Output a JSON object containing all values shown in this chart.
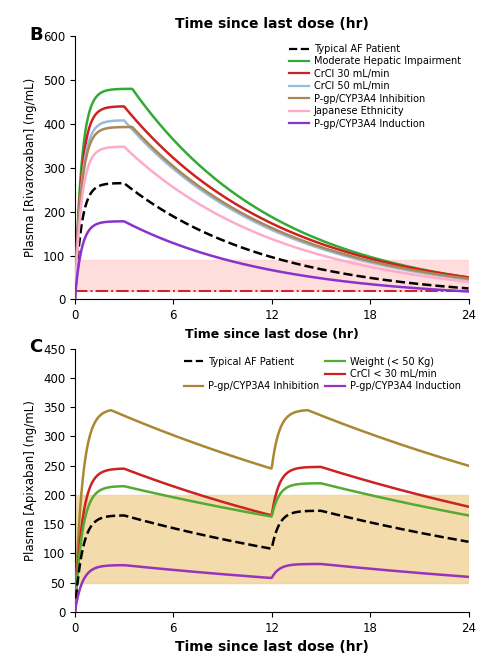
{
  "title_top": "Time since last dose (hr)",
  "panel_B": {
    "label": "B",
    "ylabel": "Plasma [Rivaroxaban] (ng/mL)",
    "xlabel": "Time since last dose (hr)",
    "ylim": [
      0,
      600
    ],
    "yticks": [
      0,
      100,
      200,
      300,
      400,
      500,
      600
    ],
    "xlim": [
      0,
      24
    ],
    "xticks": [
      0,
      6,
      12,
      18,
      24
    ],
    "shading_lower": 20,
    "shading_upper": 90,
    "shading_color": "#ffcccc",
    "hline_y": 20,
    "hline_color": "#cc2222",
    "hline_style": "-.",
    "series": [
      {
        "key": "typical",
        "color": "#000000",
        "linestyle": "--",
        "linewidth": 1.8,
        "label": "Typical AF Patient",
        "peak_x": 3.0,
        "peak_y": 265,
        "trough_y": 25
      },
      {
        "key": "hepatic",
        "color": "#33aa33",
        "linestyle": "-",
        "linewidth": 1.8,
        "label": "Moderate Hepatic Impairment",
        "peak_x": 3.5,
        "peak_y": 480,
        "trough_y": 50
      },
      {
        "key": "crcl30",
        "color": "#cc2222",
        "linestyle": "-",
        "linewidth": 1.8,
        "label": "CrCl 30 mL/min",
        "peak_x": 3.0,
        "peak_y": 440,
        "trough_y": 50
      },
      {
        "key": "crcl50",
        "color": "#99bbdd",
        "linestyle": "-",
        "linewidth": 1.8,
        "label": "CrCl 50 mL/min",
        "peak_x": 3.0,
        "peak_y": 408,
        "trough_y": 45
      },
      {
        "key": "pgp_inhib",
        "color": "#aa8855",
        "linestyle": "-",
        "linewidth": 1.8,
        "label": "P-gp/CYP3A4 Inhibition",
        "peak_x": 3.5,
        "peak_y": 393,
        "trough_y": 47
      },
      {
        "key": "japanese",
        "color": "#ffaacc",
        "linestyle": "-",
        "linewidth": 1.8,
        "label": "Japanese Ethnicity",
        "peak_x": 3.0,
        "peak_y": 348,
        "trough_y": 40
      },
      {
        "key": "pgp_induc",
        "color": "#8833cc",
        "linestyle": "-",
        "linewidth": 1.8,
        "label": "P-gp/CYP3A4 Induction",
        "peak_x": 3.0,
        "peak_y": 178,
        "trough_y": 18
      }
    ]
  },
  "panel_C": {
    "label": "C",
    "ylabel": "Plasma [Apixaban] (ng/mL)",
    "xlabel": "Time since last dose (hr)",
    "ylim": [
      0,
      450
    ],
    "yticks": [
      0,
      50,
      100,
      150,
      200,
      250,
      300,
      350,
      400,
      450
    ],
    "xlim": [
      0,
      24
    ],
    "xticks": [
      0,
      6,
      12,
      18,
      24
    ],
    "shading_lower": 50,
    "shading_upper": 200,
    "shading_color": "#f0d090",
    "series": [
      {
        "key": "pgp_inhib",
        "color": "#aa8833",
        "linestyle": "-",
        "linewidth": 1.8,
        "label": "P-gp/CYP3A4 Inhibition",
        "p1": 345,
        "t1": 245,
        "p2": 345,
        "t2": 250,
        "tpeak1": 2.2,
        "tpeak2": 14.2
      },
      {
        "key": "crcl30",
        "color": "#cc2222",
        "linestyle": "-",
        "linewidth": 1.8,
        "label": "CrCl < 30 mL/min",
        "p1": 245,
        "t1": 165,
        "p2": 248,
        "t2": 180,
        "tpeak1": 3.0,
        "tpeak2": 15.0
      },
      {
        "key": "weight",
        "color": "#55aa33",
        "linestyle": "-",
        "linewidth": 1.8,
        "label": "Weight (< 50 Kg)",
        "p1": 215,
        "t1": 163,
        "p2": 220,
        "t2": 165,
        "tpeak1": 3.0,
        "tpeak2": 15.0
      },
      {
        "key": "typical",
        "color": "#000000",
        "linestyle": "--",
        "linewidth": 1.8,
        "label": "Typical AF Patient",
        "p1": 165,
        "t1": 108,
        "p2": 173,
        "t2": 120,
        "tpeak1": 3.0,
        "tpeak2": 15.0
      },
      {
        "key": "pgp_induc",
        "color": "#9933bb",
        "linestyle": "-",
        "linewidth": 1.8,
        "label": "P-gp/CYP3A4 Induction",
        "p1": 80,
        "t1": 58,
        "p2": 82,
        "t2": 60,
        "tpeak1": 3.0,
        "tpeak2": 15.0
      }
    ]
  }
}
